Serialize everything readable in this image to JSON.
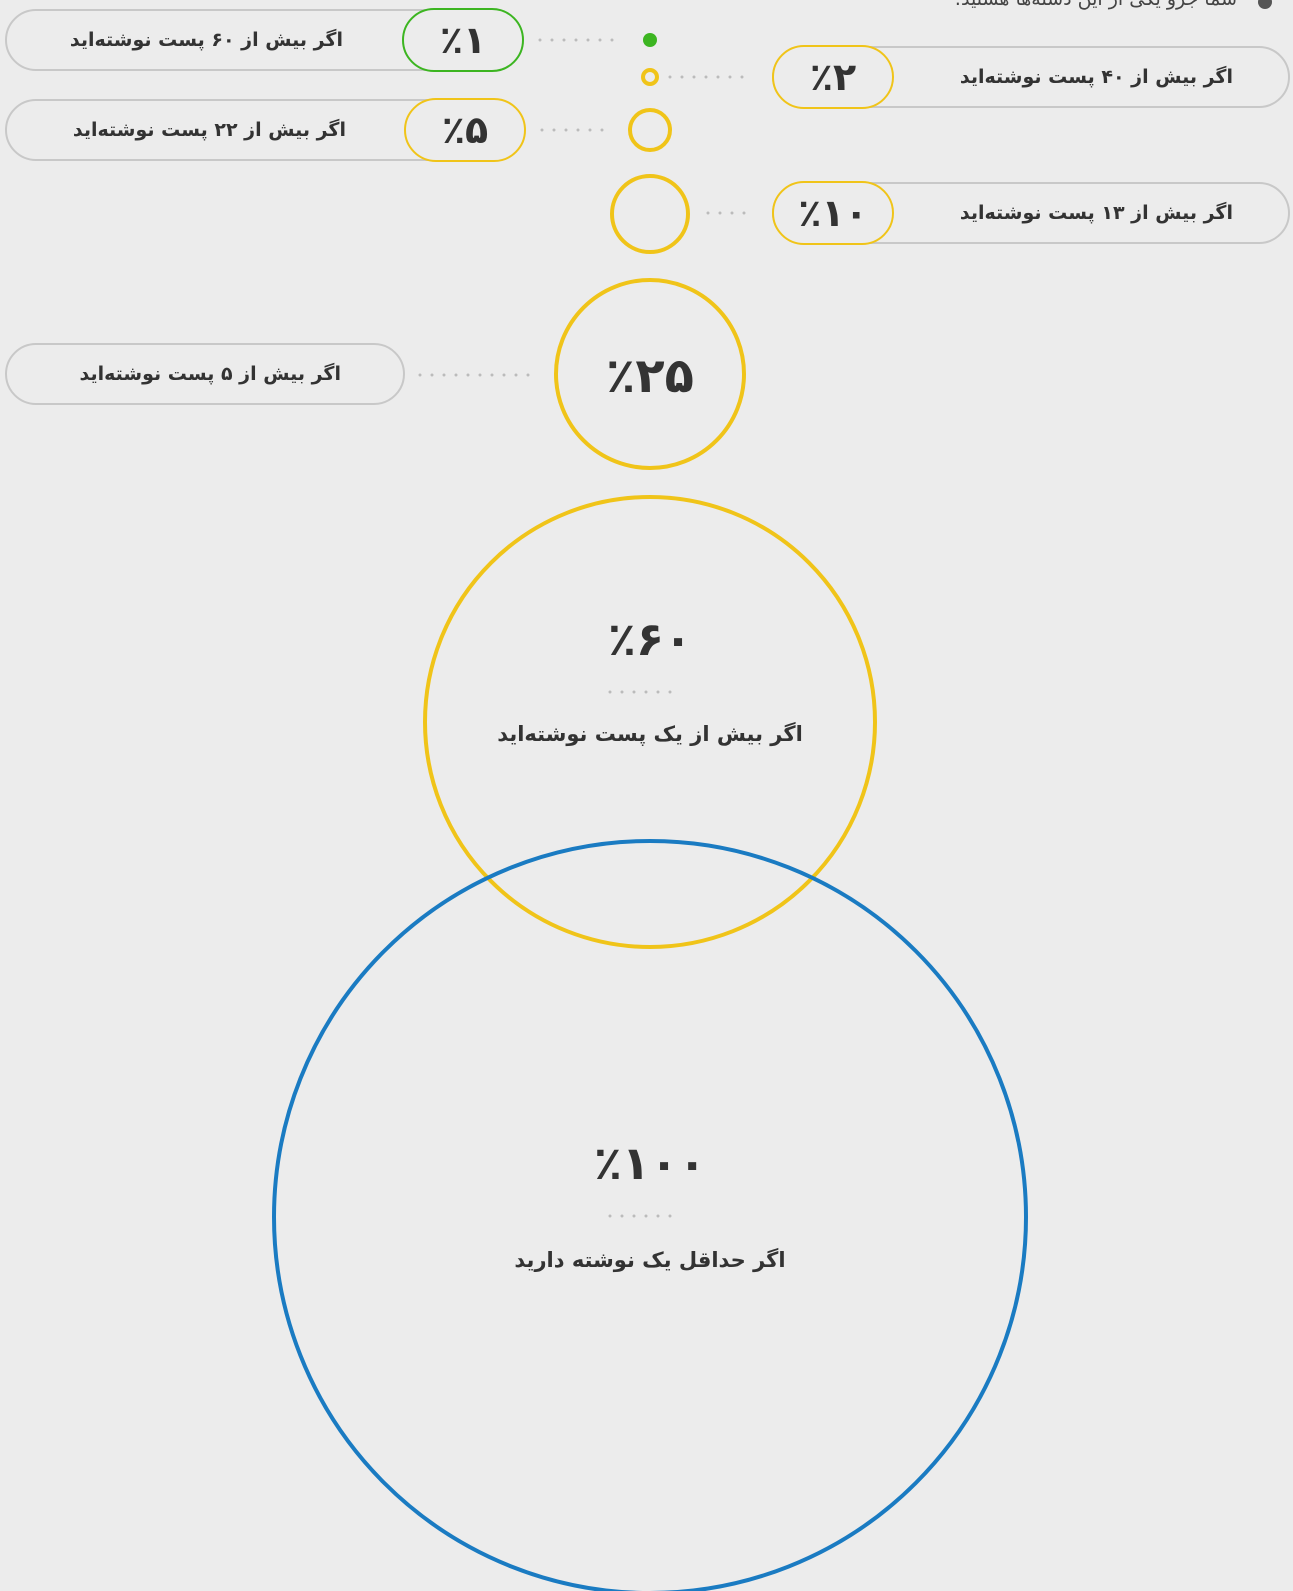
{
  "header": {
    "title": "شما جزو یکی از این دسته‌ها هستید:"
  },
  "items": [
    {
      "percent": "٪۱",
      "label": "اگر بیش از ۶۰ پست نوشته‌اید"
    },
    {
      "percent": "٪۲",
      "label": "اگر بیش از ۴۰ پست نوشته‌اید"
    },
    {
      "percent": "٪۵",
      "label": "اگر بیش از ۲۲ پست نوشته‌اید"
    },
    {
      "percent": "٪۱۰",
      "label": "اگر بیش از ۱۳ پست نوشته‌اید"
    },
    {
      "percent": "٪۲۵",
      "label": "اگر بیش از ۵ پست نوشته‌اید"
    },
    {
      "percent": "٪۶۰",
      "label": "اگر بیش از یک پست نوشته‌اید"
    },
    {
      "percent": "٪۱۰۰",
      "label": "اگر حداقل یک نوشته دارید"
    }
  ]
}
